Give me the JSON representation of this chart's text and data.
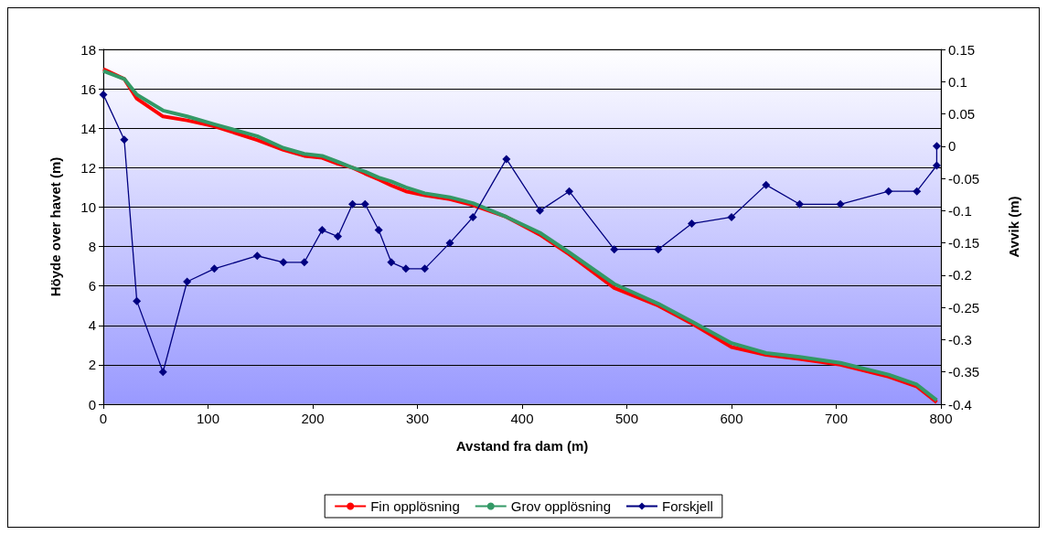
{
  "chart_data": {
    "type": "line",
    "xlabel": "Avstand fra dam (m)",
    "ylabel": "Höyde over havet (m)",
    "y2label": "Avvik (m)",
    "xlim": [
      0,
      800
    ],
    "xticks": [
      0,
      100,
      200,
      300,
      400,
      500,
      600,
      700,
      800
    ],
    "ylim": [
      0,
      18
    ],
    "yticks": [
      0,
      2,
      4,
      6,
      8,
      10,
      12,
      14,
      16,
      18
    ],
    "y2lim": [
      -0.4,
      0.15
    ],
    "y2ticks": [
      -0.4,
      -0.35,
      -0.3,
      -0.25,
      -0.2,
      -0.15,
      -0.1,
      -0.05,
      0,
      0.05,
      0.1,
      0.15
    ],
    "grid": "y",
    "legend": "bottom",
    "series": [
      {
        "name": "Fin opplösning",
        "color": "#ff0000",
        "marker": "none",
        "x": [
          0,
          20,
          32,
          57,
          80,
          106,
          147,
          172,
          192,
          209,
          224,
          238,
          250,
          263,
          275,
          289,
          307,
          331,
          353,
          385,
          417,
          445,
          488,
          530,
          562,
          600,
          633,
          665,
          704,
          750,
          777,
          796
        ],
        "values": [
          17.0,
          16.5,
          15.5,
          14.6,
          14.4,
          14.1,
          13.4,
          12.9,
          12.6,
          12.5,
          12.2,
          12.0,
          11.7,
          11.4,
          11.1,
          10.8,
          10.6,
          10.4,
          10.1,
          9.5,
          8.6,
          7.6,
          5.9,
          5.0,
          4.1,
          2.9,
          2.5,
          2.3,
          2.0,
          1.4,
          0.9,
          0.1
        ]
      },
      {
        "name": "Grov opplösning",
        "color": "#339966",
        "marker": "none",
        "x": [
          0,
          20,
          32,
          57,
          80,
          106,
          147,
          172,
          192,
          209,
          224,
          238,
          250,
          263,
          275,
          289,
          307,
          331,
          353,
          385,
          417,
          445,
          488,
          530,
          562,
          600,
          633,
          665,
          704,
          750,
          777,
          796
        ],
        "values": [
          16.9,
          16.5,
          15.7,
          14.9,
          14.6,
          14.2,
          13.6,
          13.0,
          12.7,
          12.6,
          12.3,
          12.0,
          11.8,
          11.5,
          11.3,
          11.0,
          10.7,
          10.5,
          10.2,
          9.5,
          8.7,
          7.7,
          6.1,
          5.1,
          4.2,
          3.1,
          2.6,
          2.4,
          2.1,
          1.5,
          1.0,
          0.2
        ]
      },
      {
        "name": "Forskjell",
        "color": "#000080",
        "marker": "diamond",
        "axis": "y2",
        "x": [
          0,
          20,
          32,
          57,
          80,
          106,
          147,
          172,
          192,
          209,
          224,
          238,
          250,
          263,
          275,
          289,
          307,
          331,
          353,
          385,
          417,
          445,
          488,
          530,
          562,
          600,
          633,
          665,
          704,
          750,
          777,
          796,
          796
        ],
        "values": [
          0.08,
          0.01,
          -0.24,
          -0.35,
          -0.21,
          -0.19,
          -0.17,
          -0.18,
          -0.18,
          -0.13,
          -0.14,
          -0.09,
          -0.09,
          -0.13,
          -0.18,
          -0.19,
          -0.19,
          -0.15,
          -0.11,
          -0.02,
          -0.1,
          -0.07,
          -0.16,
          -0.16,
          -0.12,
          -0.11,
          -0.06,
          -0.09,
          -0.09,
          -0.07,
          -0.07,
          -0.03,
          0
        ]
      }
    ]
  }
}
